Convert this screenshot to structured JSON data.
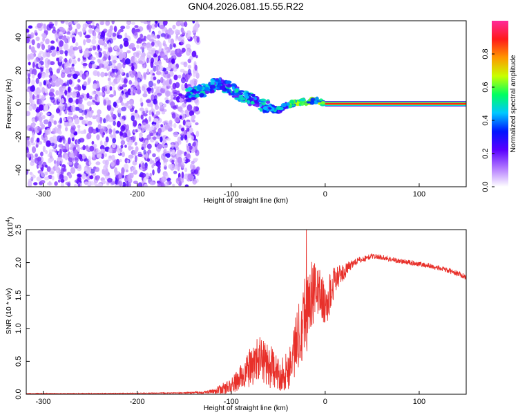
{
  "figure_title": "GN04.2026.081.15.55.R22",
  "colors": {
    "snr_line": "#e8302a",
    "axis": "#000000",
    "background": "#ffffff",
    "spectrogram_purple": "#6f22d8"
  },
  "chart_data": [
    {
      "type": "heatmap",
      "title": "GN04.2026.081.15.55.R22",
      "xlabel": "Height of straight line (km)",
      "ylabel": "Frequency (Hz)",
      "xlim": [
        -318,
        150
      ],
      "ylim": [
        -50,
        50
      ],
      "xticks": [
        -300,
        -200,
        -100,
        0,
        100
      ],
      "xtick_labels": [
        "-300",
        "-200",
        "-100",
        "0",
        "100"
      ],
      "yticks": [
        -40,
        -20,
        0,
        20,
        40
      ],
      "ytick_labels": [
        "-40",
        "-20",
        "0",
        "20",
        "40"
      ],
      "colorbar": {
        "label": "Normalized spectral amplitude",
        "range": [
          0,
          1
        ],
        "ticks": [
          0.0,
          0.2,
          0.4,
          0.6,
          0.8
        ],
        "tick_labels": [
          "0.0",
          "0.2",
          "0.4",
          "0.6",
          "0.8"
        ],
        "colormap": [
          "#ffffff",
          "#b37aff",
          "#5a00ff",
          "#0014ff",
          "#00c8ff",
          "#00ff60",
          "#c8ff00",
          "#ff9800",
          "#ff1a1a",
          "#ff2a9a"
        ]
      },
      "features": [
        {
          "name": "noise_region",
          "x_range": [
            -318,
            -135
          ],
          "freq_range": [
            -50,
            50
          ],
          "amplitude": 0.1
        },
        {
          "name": "drifting_track",
          "points_km_hz": [
            [
              -148,
              5
            ],
            [
              -130,
              8
            ],
            [
              -115,
              12
            ],
            [
              -100,
              9
            ],
            [
              -90,
              5
            ],
            [
              -80,
              3
            ],
            [
              -70,
              0
            ],
            [
              -60,
              -2
            ],
            [
              -50,
              -4
            ],
            [
              -40,
              -1
            ],
            [
              -30,
              1
            ],
            [
              -20,
              1
            ],
            [
              -10,
              2
            ],
            [
              0,
              0
            ]
          ],
          "amplitude": 0.35
        },
        {
          "name": "steady_tone",
          "x_range": [
            0,
            150
          ],
          "freq_hz": 0,
          "amplitude": 0.95
        }
      ]
    },
    {
      "type": "line",
      "title": "",
      "xlabel": "Height of straight line (km)",
      "ylabel": "SNR (10 * v/v)",
      "yscale_label": "(x10",
      "yscale_exponent": "4",
      "yscale_suffix": ")",
      "xlim": [
        -318,
        150
      ],
      "ylim": [
        0,
        2.5
      ],
      "xticks": [
        -300,
        -200,
        -100,
        0,
        100
      ],
      "xtick_labels": [
        "-300",
        "-200",
        "-100",
        "0",
        "100"
      ],
      "yticks": [
        0,
        0.5,
        1.0,
        1.5,
        2.0,
        2.5
      ],
      "ytick_labels": [
        "0.0",
        "0.5",
        "1.0",
        "1.5",
        "2.0",
        "2.5"
      ],
      "series": [
        {
          "name": "SNR",
          "x": [
            -318,
            -250,
            -200,
            -150,
            -130,
            -120,
            -110,
            -100,
            -90,
            -80,
            -70,
            -60,
            -50,
            -40,
            -30,
            -25,
            -20,
            -15,
            -10,
            -5,
            0,
            5,
            10,
            20,
            30,
            40,
            50,
            60,
            70,
            80,
            90,
            100,
            110,
            120,
            130,
            140,
            150
          ],
          "y": [
            0.01,
            0.01,
            0.015,
            0.02,
            0.03,
            0.04,
            0.08,
            0.12,
            0.25,
            0.4,
            0.55,
            0.45,
            0.3,
            0.35,
            0.8,
            1.1,
            1.3,
            1.5,
            1.6,
            1.55,
            1.3,
            1.5,
            1.75,
            1.85,
            2.0,
            2.05,
            2.1,
            2.08,
            2.05,
            2.02,
            2.0,
            1.98,
            1.95,
            1.92,
            1.88,
            1.84,
            1.78
          ],
          "noise_amplitude": [
            0.005,
            0.005,
            0.005,
            0.008,
            0.02,
            0.03,
            0.08,
            0.12,
            0.2,
            0.3,
            0.35,
            0.35,
            0.25,
            0.3,
            0.5,
            0.6,
            0.7,
            0.55,
            0.4,
            0.35,
            0.35,
            0.35,
            0.2,
            0.12,
            0.06,
            0.05,
            0.04,
            0.04,
            0.04,
            0.04,
            0.04,
            0.04,
            0.04,
            0.04,
            0.04,
            0.04,
            0.04
          ],
          "peak_value": 2.5,
          "peak_x": -20
        }
      ]
    }
  ]
}
